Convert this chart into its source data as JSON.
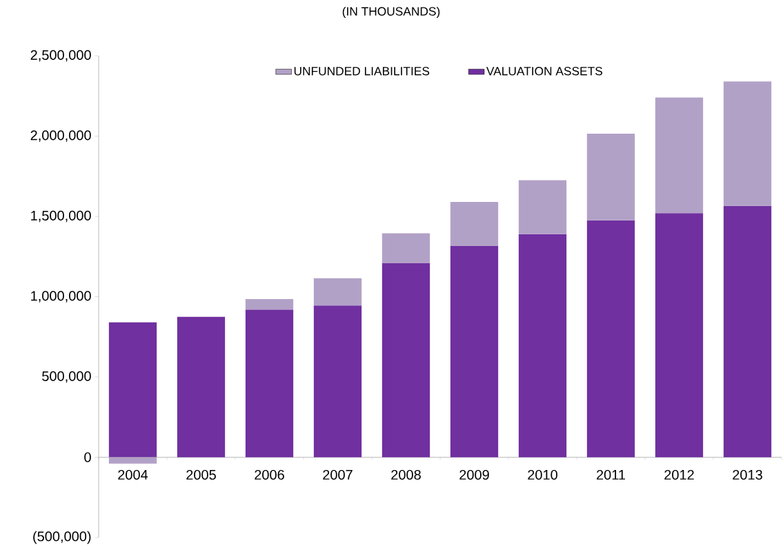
{
  "chart_data": {
    "type": "bar",
    "stacked": true,
    "title": "(IN THOUSANDS)",
    "categories": [
      "2004",
      "2005",
      "2006",
      "2007",
      "2008",
      "2009",
      "2010",
      "2011",
      "2012",
      "2013"
    ],
    "series": [
      {
        "name": "VALUATION ASSETS",
        "color": "#7030a0",
        "values": [
          840000,
          875000,
          920000,
          945000,
          1210000,
          1315000,
          1390000,
          1475000,
          1520000,
          1565000
        ]
      },
      {
        "name": "UNFUNDED LIABILITIES",
        "color": "#b2a1c7",
        "values": [
          -40000,
          0,
          65000,
          170000,
          185000,
          275000,
          335000,
          540000,
          720000,
          775000
        ]
      }
    ],
    "ylim": [
      -500000,
      2500000
    ],
    "yticks": [
      {
        "value": -500000,
        "label": "(500,000)"
      },
      0,
      {
        "value": 500000,
        "label": "500,000"
      },
      {
        "value": 1000000,
        "label": "1,000,000"
      },
      {
        "value": 1500000,
        "label": "1,500,000"
      },
      {
        "value": 2000000,
        "label": "2,000,000"
      },
      {
        "value": 2500000,
        "label": "2,500,000"
      }
    ],
    "legend": "top",
    "grid": false
  }
}
